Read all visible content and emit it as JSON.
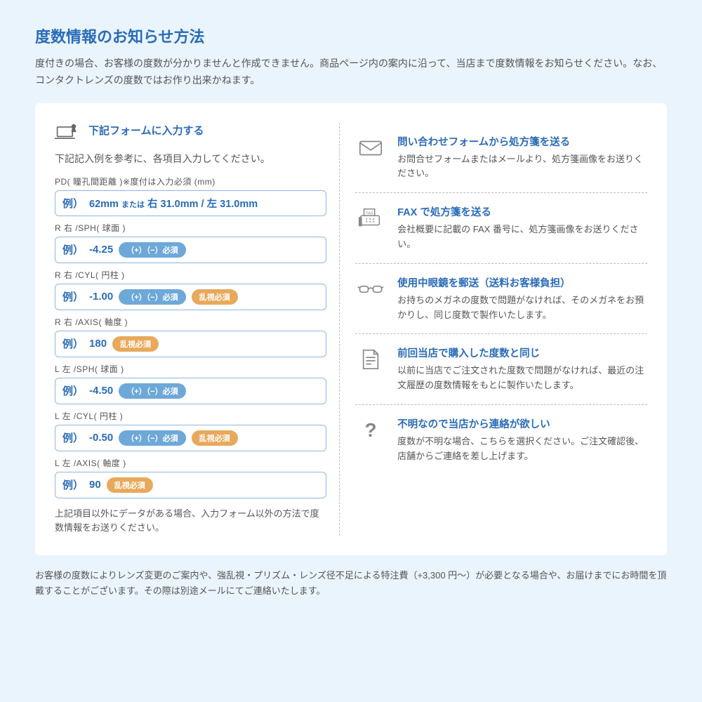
{
  "header": {
    "title": "度数情報のお知らせ方法",
    "desc": "度付きの場合、お客様の度数が分かりませんと作成できません。商品ページ内の案内に沿って、当店まで度数情報をお知らせください。なお、コンタクトレンズの度数ではお作り出来かねます。"
  },
  "form": {
    "title": "下記フォームに入力する",
    "subtitle": "下記記入例を参考に、各項目入力してください。",
    "footnote": "上記項目以外にデータがある場合、入力フォーム以外の方法で度数情報をお送りください。",
    "fields": [
      {
        "label": "PD( 瞳孔間距離 )※度付は入力必須 (mm)",
        "prefix": "例）",
        "compound": "62mm または 右 31.0mm / 左 31.0mm",
        "badges": []
      },
      {
        "label": "R 右 /SPH( 球面 )",
        "prefix": "例）",
        "value": "-4.25",
        "badges": [
          {
            "type": "blue",
            "text": "（+）（−）必須"
          }
        ]
      },
      {
        "label": "R 右 /CYL( 円柱 )",
        "prefix": "例）",
        "value": "-1.00",
        "badges": [
          {
            "type": "blue",
            "text": "（+）（−）必須"
          },
          {
            "type": "orange",
            "text": "乱視必須"
          }
        ]
      },
      {
        "label": "R 右 /AXIS( 軸度 )",
        "prefix": "例）",
        "value": "180",
        "badges": [
          {
            "type": "orange",
            "text": "乱視必須"
          }
        ]
      },
      {
        "label": "L 左 /SPH( 球面 )",
        "prefix": "例）",
        "value": "-4.50",
        "badges": [
          {
            "type": "blue",
            "text": "（+）（−）必須"
          }
        ]
      },
      {
        "label": "L 左 /CYL( 円柱 )",
        "prefix": "例）",
        "value": "-0.50",
        "badges": [
          {
            "type": "blue",
            "text": "（+）（−）必須"
          },
          {
            "type": "orange",
            "text": "乱視必須"
          }
        ]
      },
      {
        "label": "L 左 /AXIS( 軸度 )",
        "prefix": "例）",
        "value": "90",
        "badges": [
          {
            "type": "orange",
            "text": "乱視必須"
          }
        ]
      }
    ]
  },
  "methods": [
    {
      "icon": "mail",
      "title": "問い合わせフォームから処方箋を送る",
      "desc": "お問合せフォームまたはメールより、処方箋画像をお送りください。"
    },
    {
      "icon": "fax",
      "title": "FAX で処方箋を送る",
      "desc": "会社概要に記載の FAX 番号に、処方箋画像をお送りください。"
    },
    {
      "icon": "glasses",
      "title": "使用中眼鏡を郵送（送料お客様負担）",
      "desc": "お持ちのメガネの度数で問題がなければ、そのメガネをお預かりし、同じ度数で製作いたします。"
    },
    {
      "icon": "doc",
      "title": "前回当店で購入した度数と同じ",
      "desc": "以前に当店でご注文された度数で問題がなければ、最近の注文履歴の度数情報をもとに製作いたします。"
    },
    {
      "icon": "question",
      "title": "不明なので当店から連絡が欲しい",
      "desc": "度数が不明な場合、こちらを選択ください。ご注文確認後、店舗からご連絡を差し上げます。"
    }
  ],
  "footer": "お客様の度数によりレンズ変更のご案内や、強乱視・プリズム・レンズ径不足による特注費（+3,300 円〜）が必要となる場合や、お届けまでにお時間を頂戴することがございます。その際は別途メールにてご連絡いたします。"
}
